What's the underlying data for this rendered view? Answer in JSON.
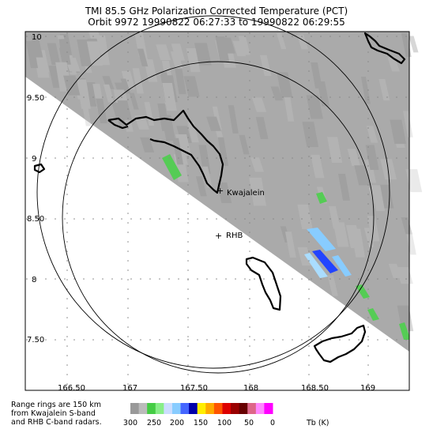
{
  "title": {
    "line1": "TMI 85.5 GHz Polarization Corrected Temperature (PCT)",
    "line2": "Orbit 9972 19990822 06:27:33 to 19990822 06:29:55"
  },
  "axes": {
    "x_ticks": [
      "166.50",
      "167",
      "167.50",
      "168",
      "168.50",
      "169"
    ],
    "y_ticks": [
      "10",
      "9.50",
      "9",
      "8.50",
      "8",
      "7.50"
    ]
  },
  "places": {
    "kwajalein": "Kwajalein",
    "rhb": "RHB",
    "rhb_marker": "+"
  },
  "footnote": {
    "line1": "Range rings are 150 km",
    "line2": "from Kwajalein S-band",
    "line3": "and RHB C-band radars."
  },
  "colorbar": {
    "ticks": [
      "300",
      "250",
      "200",
      "150",
      "100",
      "50",
      "0"
    ],
    "unit": "Tb (K)",
    "colors": [
      "#999999",
      "#bbbbbb",
      "#44cc44",
      "#88ee88",
      "#ccddff",
      "#88ccff",
      "#4466ff",
      "#0000aa",
      "#ffee00",
      "#ffaa00",
      "#ff5500",
      "#dd0000",
      "#990000",
      "#660000",
      "#dd6688",
      "#ff88ff",
      "#ff00ff"
    ]
  },
  "swath_color": "#aaaaaa",
  "colors": {
    "land": "#000000",
    "ring": "#000000",
    "grid": "#888888"
  }
}
